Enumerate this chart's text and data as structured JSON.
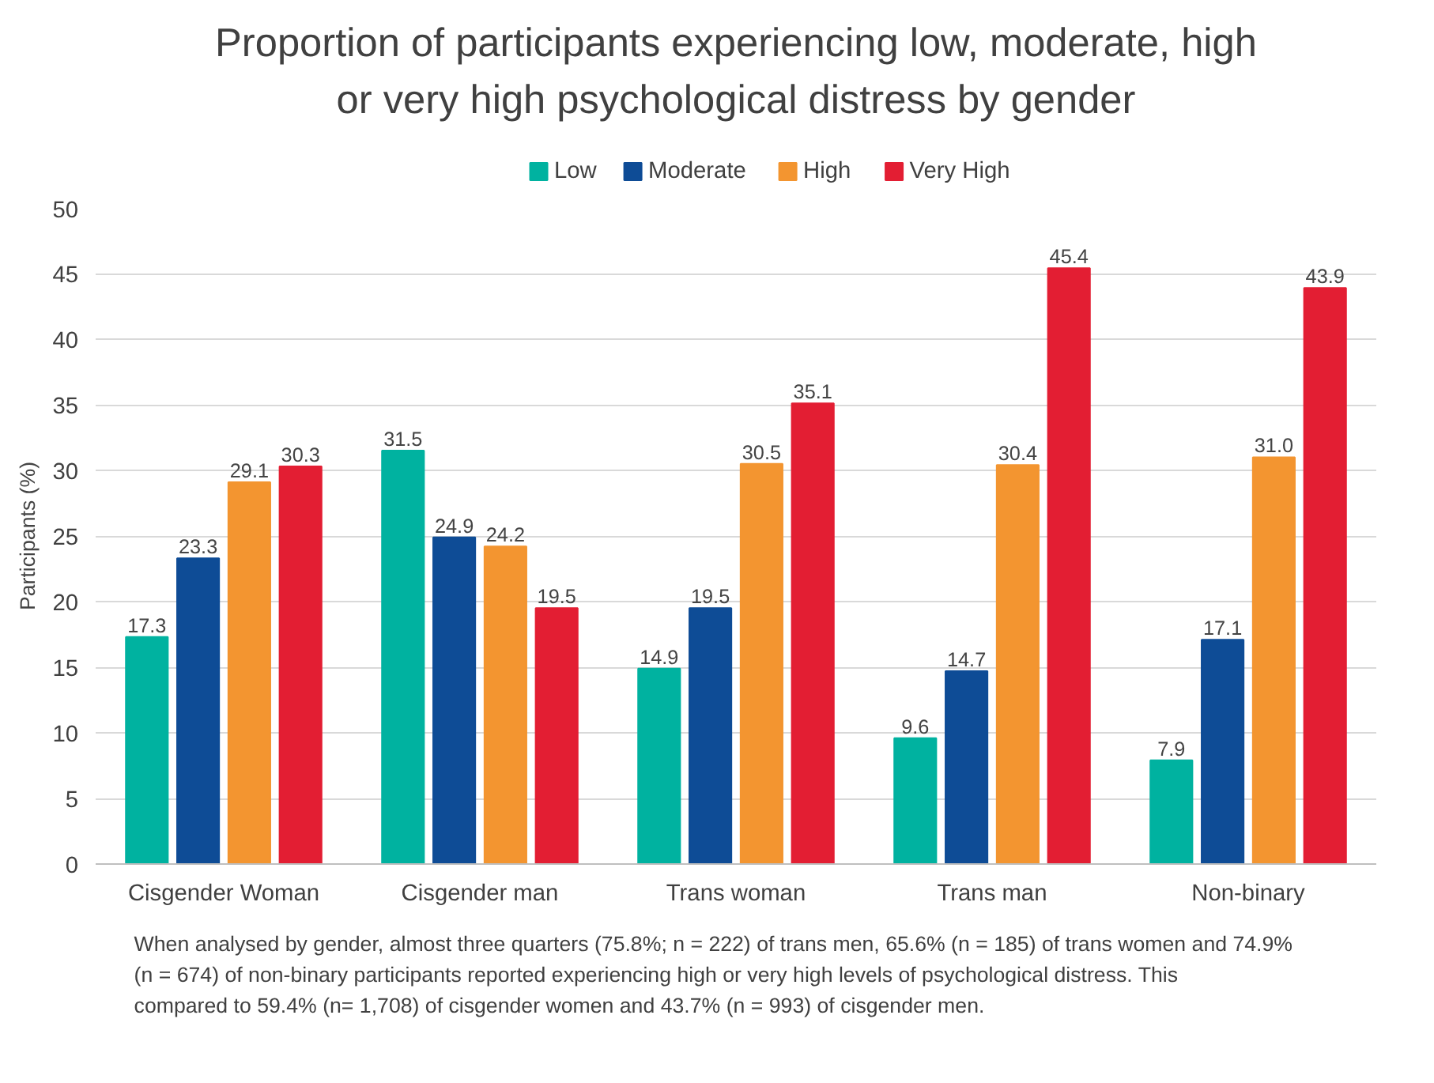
{
  "chart_data": {
    "type": "bar",
    "title": "Proportion of participants experiencing low, moderate, high or very high psychological distress by gender",
    "categories": [
      "Cisgender Woman",
      "Cisgender man",
      "Trans woman",
      "Trans man",
      "Non-binary"
    ],
    "series": [
      {
        "name": "Low",
        "color": "#00b2a0",
        "values": [
          17.3,
          31.5,
          14.9,
          9.6,
          7.9
        ],
        "value_labels": [
          "17.3",
          "31.5",
          "14.9",
          "9.6",
          "7.9"
        ]
      },
      {
        "name": "Moderate",
        "color": "#0e4c96",
        "values": [
          23.3,
          24.9,
          19.5,
          14.7,
          17.1
        ],
        "value_labels": [
          "23.3",
          "24.9",
          "19.5",
          "14.7",
          "17.1"
        ]
      },
      {
        "name": "High",
        "color": "#f39530",
        "values": [
          29.1,
          24.2,
          30.5,
          30.4,
          31.0
        ],
        "value_labels": [
          "29.1",
          "24.2",
          "30.5",
          "30.4",
          "31.0"
        ]
      },
      {
        "name": "Very High",
        "color": "#e31e33",
        "values": [
          30.3,
          19.5,
          35.1,
          45.4,
          43.9
        ],
        "value_labels": [
          "30.3",
          "19.5",
          "35.1",
          "45.4",
          "43.9"
        ]
      }
    ],
    "ylabel": "Participants (%)",
    "ylim": [
      0,
      50
    ],
    "yticks": [
      0,
      5,
      10,
      15,
      20,
      25,
      30,
      35,
      40,
      45,
      50
    ],
    "grid": "y",
    "legend": "top",
    "annotations": [
      "When analysed by gender, almost three quarters (75.8%; n = 222) of trans men, 65.6% (n = 185) of trans women and 74.9% (n = 674) of non-binary participants reported experiencing high or very high levels of psychological distress. This compared to 59.4% (n= 1,708) of cisgender women and 43.7% (n = 993) of cisgender men."
    ]
  }
}
